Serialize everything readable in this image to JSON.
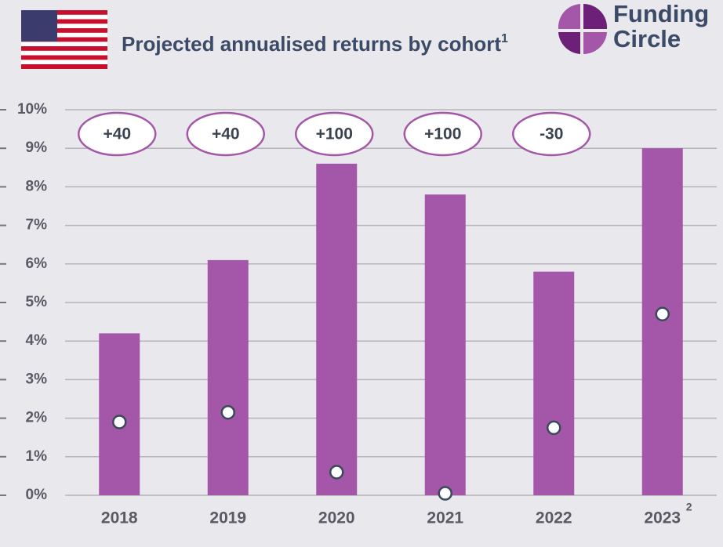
{
  "chart_data": {
    "type": "bar",
    "title": "Projected annualised returns by cohort",
    "title_footnote": "1",
    "logo": [
      "Funding",
      "Circle"
    ],
    "categories": [
      "2018",
      "2019",
      "2020",
      "2021",
      "2022",
      "2023"
    ],
    "category_footnotes": [
      null,
      null,
      null,
      null,
      null,
      "2"
    ],
    "series": [
      {
        "color": "#a457a8",
        "values": [
          4.2,
          6.1,
          8.6,
          7.8,
          5.8,
          9.0
        ]
      },
      {
        "color": "#ffffff",
        "values": [
          1.9,
          2.15,
          0.6,
          0.05,
          1.75,
          4.7
        ]
      }
    ],
    "bar_annotations": [
      "+40",
      "+40",
      "+100",
      "+100",
      "-30",
      null
    ],
    "ylim": [
      0,
      10
    ],
    "yticks": [
      {
        "value": 0,
        "label": "0%"
      },
      {
        "value": 1,
        "label": "1%"
      },
      {
        "value": 2,
        "label": "2%"
      },
      {
        "value": 3,
        "label": "3%"
      },
      {
        "value": 4,
        "label": "4%"
      },
      {
        "value": 5,
        "label": "5%"
      },
      {
        "value": 6,
        "label": "6%"
      },
      {
        "value": 7,
        "label": "7%"
      },
      {
        "value": 8,
        "label": "8%"
      },
      {
        "value": 9,
        "label": "9%"
      },
      {
        "value": 10,
        "label": "10%"
      }
    ],
    "grid": true
  }
}
